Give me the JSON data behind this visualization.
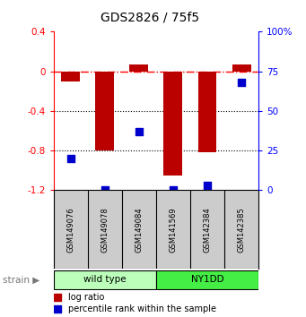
{
  "title": "GDS2826 / 75f5",
  "samples": [
    "GSM149076",
    "GSM149078",
    "GSM149084",
    "GSM141569",
    "GSM142384",
    "GSM142385"
  ],
  "log_ratio": [
    -0.1,
    -0.8,
    0.07,
    -1.05,
    -0.82,
    0.07
  ],
  "percentile_rank": [
    20,
    0,
    37,
    0,
    3,
    68
  ],
  "groups": [
    {
      "label": "wild type",
      "indices": [
        0,
        1,
        2
      ],
      "color": "#bbffbb"
    },
    {
      "label": "NY1DD",
      "indices": [
        3,
        4,
        5
      ],
      "color": "#44ee44"
    }
  ],
  "ylim_left": [
    -1.2,
    0.4
  ],
  "ylim_right": [
    0,
    100
  ],
  "yticks_left": [
    0.4,
    0.0,
    -0.4,
    -0.8,
    -1.2
  ],
  "yticks_right": [
    100,
    75,
    50,
    25,
    0
  ],
  "ytick_labels_left": [
    "0.4",
    "0",
    "-0.4",
    "-0.8",
    "-1.2"
  ],
  "ytick_labels_right": [
    "100%",
    "75",
    "50",
    "25",
    "0"
  ],
  "hlines_dotted": [
    -0.4,
    -0.8
  ],
  "hline_dash_dot": 0.0,
  "bar_color": "#bb0000",
  "dot_color": "#0000cc",
  "bar_width": 0.55,
  "dot_size": 40,
  "legend_log_ratio": "log ratio",
  "legend_percentile": "percentile rank within the sample",
  "strain_label": "strain",
  "background_color": "#ffffff",
  "sample_box_color": "#cccccc"
}
